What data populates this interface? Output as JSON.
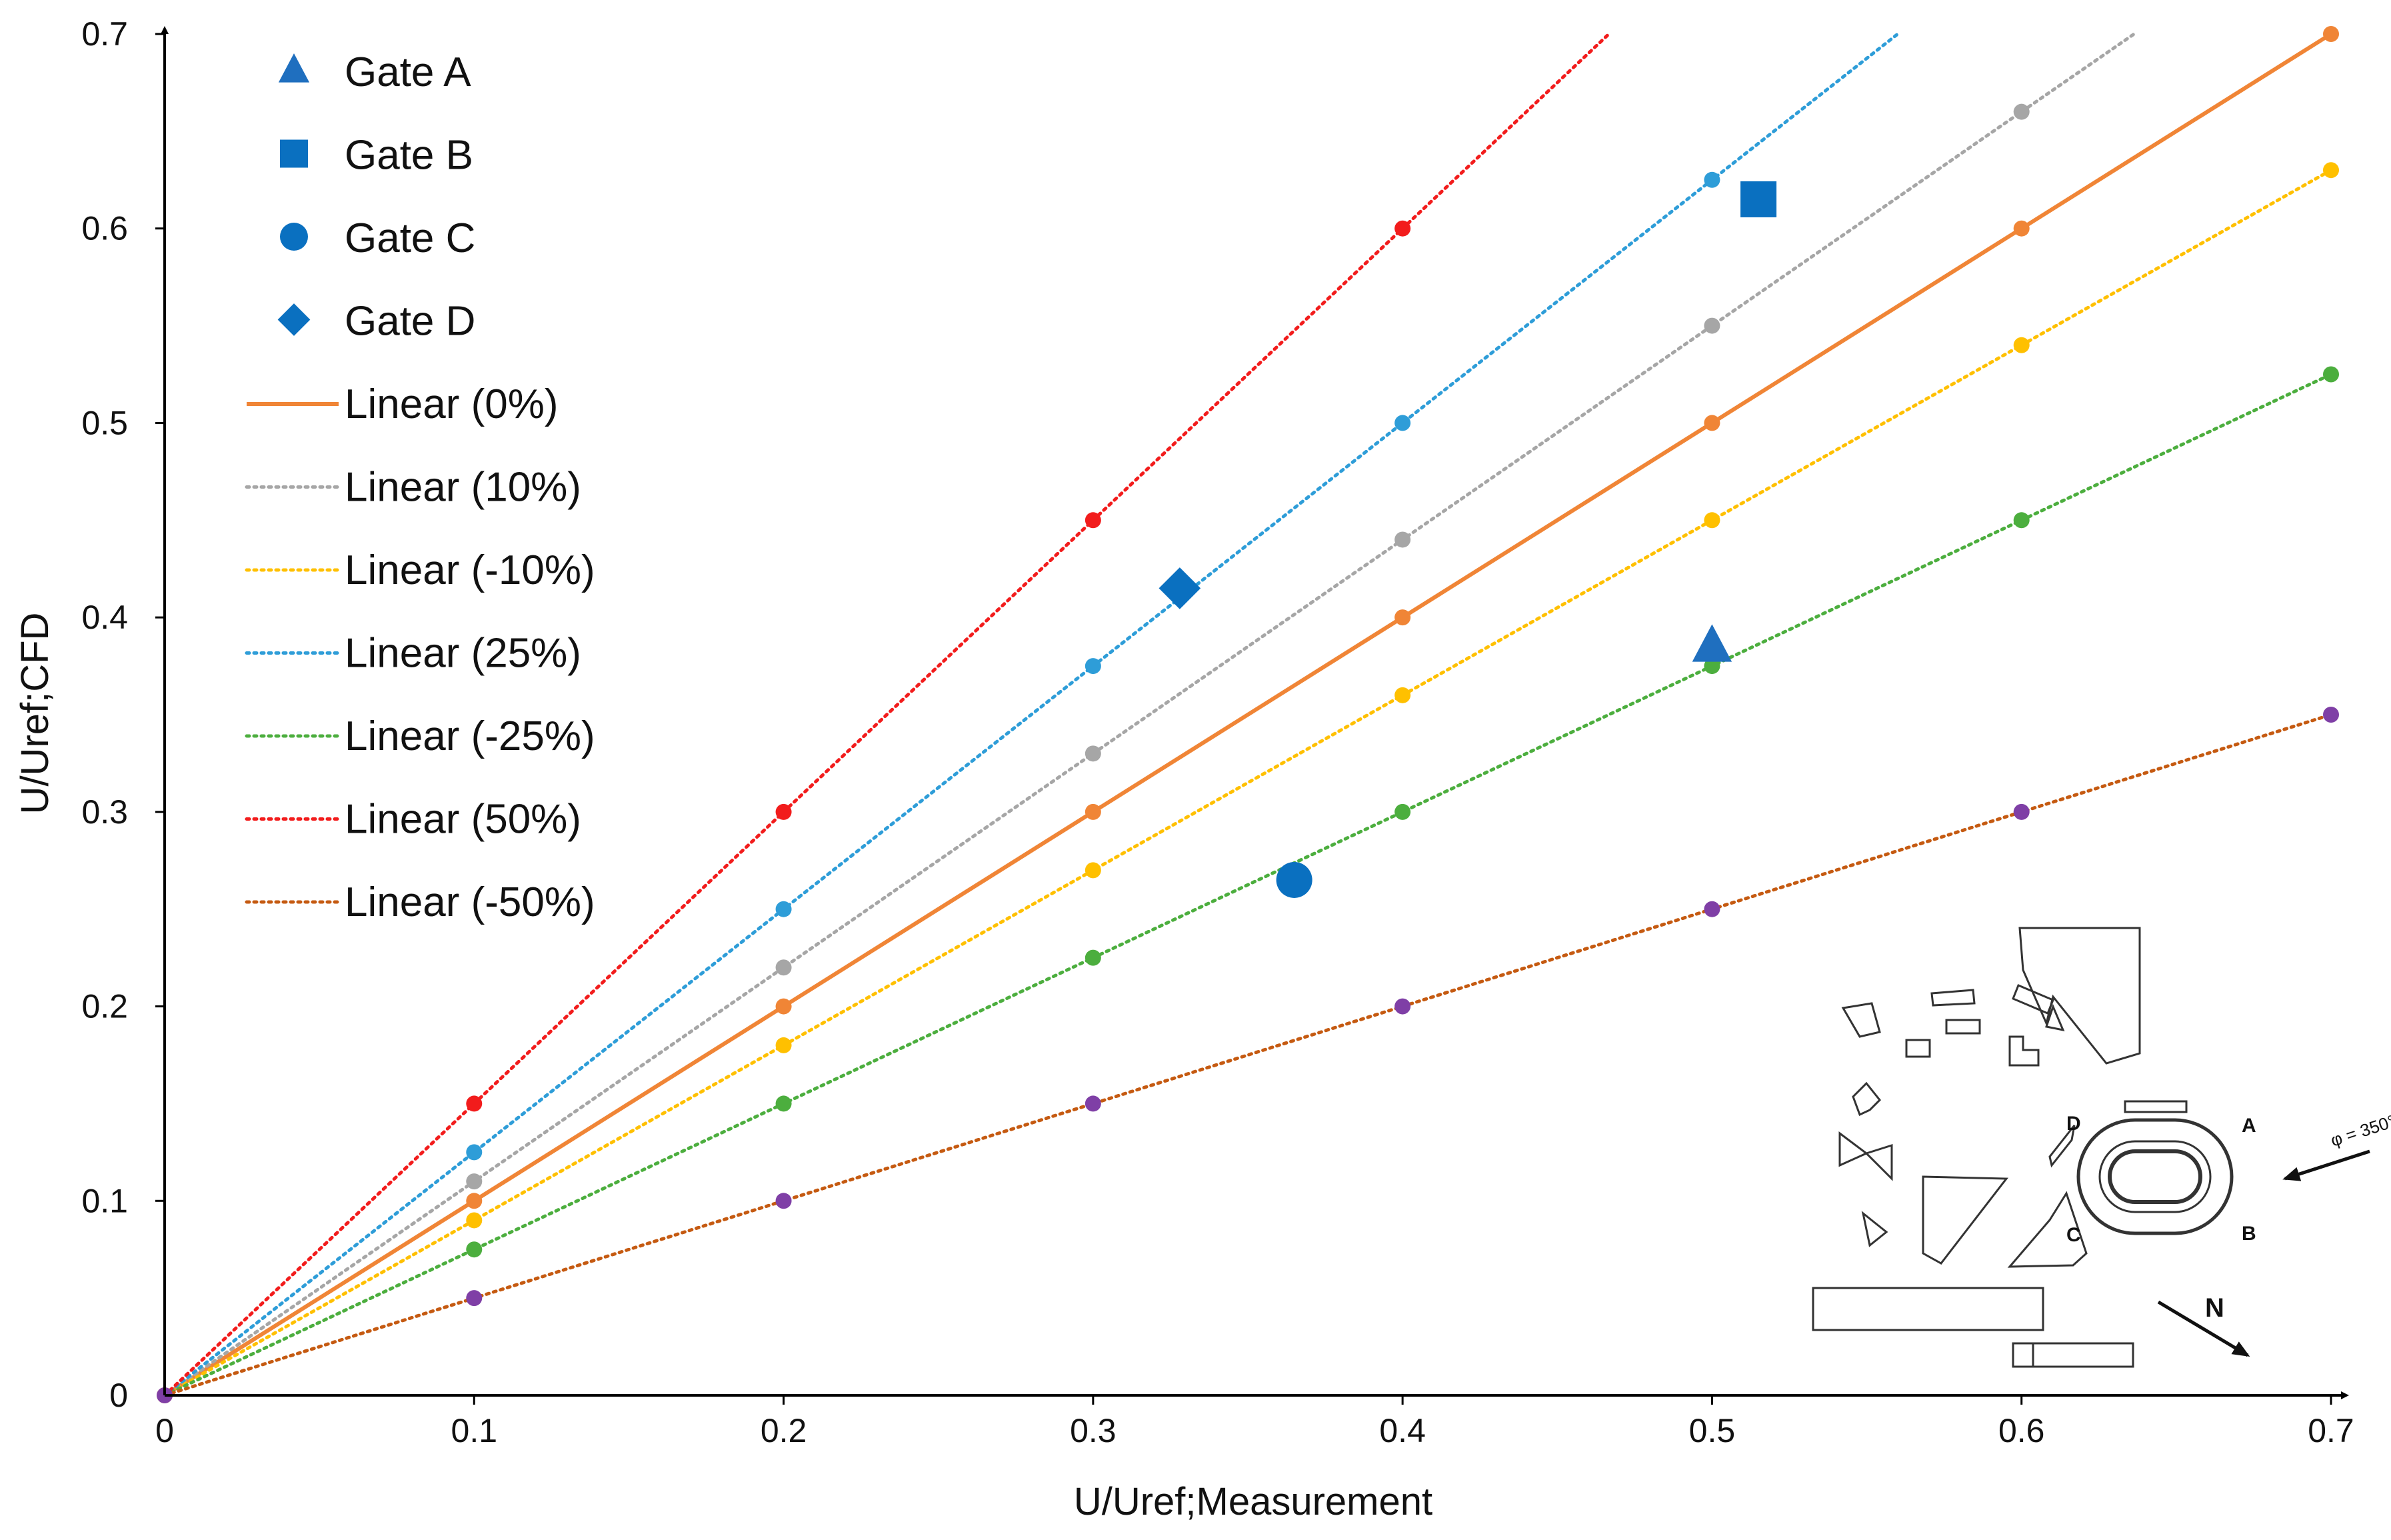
{
  "chart_data": {
    "type": "scatter",
    "title": "",
    "xlabel": "U/Uref;Measurement",
    "ylabel": "U/Uref;CFD",
    "xlim": [
      0,
      0.7
    ],
    "ylim": [
      0,
      0.7
    ],
    "xticks": [
      "0",
      "0.1",
      "0.2",
      "0.3",
      "0.4",
      "0.5",
      "0.6",
      "0.7"
    ],
    "yticks": [
      "0",
      "0.1",
      "0.2",
      "0.3",
      "0.4",
      "0.5",
      "0.6",
      "0.7"
    ],
    "grid": false,
    "legend_position": "top-left",
    "gates": [
      {
        "name": "Gate A",
        "marker": "triangle",
        "color": "#1F6FBF",
        "x": 0.5,
        "y": 0.385
      },
      {
        "name": "Gate B",
        "marker": "square",
        "color": "#0A70C0",
        "x": 0.515,
        "y": 0.615
      },
      {
        "name": "Gate C",
        "marker": "circle",
        "color": "#0A70C0",
        "x": 0.365,
        "y": 0.265
      },
      {
        "name": "Gate D",
        "marker": "diamond",
        "color": "#0A70C0",
        "x": 0.328,
        "y": 0.415
      }
    ],
    "series": [
      {
        "name": "Linear (0%)",
        "slope": 1.0,
        "style": "solid",
        "line_color": "#F08536",
        "point_color": "#F08536",
        "x": [
          0,
          0.1,
          0.2,
          0.3,
          0.4,
          0.5,
          0.6,
          0.7
        ],
        "y": [
          0,
          0.1,
          0.2,
          0.3,
          0.4,
          0.5,
          0.6,
          0.7
        ]
      },
      {
        "name": "Linear (10%)",
        "slope": 1.1,
        "style": "dotted",
        "line_color": "#A6A6A6",
        "point_color": "#A6A6A6",
        "x": [
          0.1,
          0.2,
          0.3,
          0.4,
          0.5,
          0.6
        ],
        "y": [
          0.11,
          0.22,
          0.33,
          0.44,
          0.55,
          0.66
        ]
      },
      {
        "name": "Linear (-10%)",
        "slope": 0.9,
        "style": "dotted",
        "line_color": "#FFC000",
        "point_color": "#FFC000",
        "x": [
          0.1,
          0.2,
          0.3,
          0.4,
          0.5,
          0.6,
          0.7
        ],
        "y": [
          0.09,
          0.18,
          0.27,
          0.36,
          0.45,
          0.54,
          0.63
        ]
      },
      {
        "name": "Linear (25%)",
        "slope": 1.25,
        "style": "dotted",
        "line_color": "#2E9DD8",
        "point_color": "#2E9DD8",
        "x": [
          0.1,
          0.2,
          0.3,
          0.4,
          0.5
        ],
        "y": [
          0.125,
          0.25,
          0.375,
          0.5,
          0.625
        ]
      },
      {
        "name": "Linear (-25%)",
        "slope": 0.75,
        "style": "dotted",
        "line_color": "#4CAE3E",
        "point_color": "#4CAE3E",
        "x": [
          0.1,
          0.2,
          0.3,
          0.4,
          0.5,
          0.6,
          0.7
        ],
        "y": [
          0.075,
          0.15,
          0.225,
          0.3,
          0.375,
          0.45,
          0.525
        ]
      },
      {
        "name": "Linear (50%)",
        "slope": 1.5,
        "style": "dotted",
        "line_color": "#F21C1C",
        "point_color": "#F21C1C",
        "x": [
          0.1,
          0.2,
          0.3,
          0.4
        ],
        "y": [
          0.15,
          0.3,
          0.45,
          0.6
        ]
      },
      {
        "name": "Linear (-50%)",
        "slope": 0.5,
        "style": "dotted",
        "line_color": "#C55A11",
        "point_color": "#7F3FA6",
        "x": [
          0,
          0.1,
          0.2,
          0.3,
          0.4,
          0.5,
          0.6,
          0.7
        ],
        "y": [
          0,
          0.05,
          0.1,
          0.15,
          0.2,
          0.25,
          0.3,
          0.35
        ]
      }
    ]
  },
  "site_plan": {
    "labels": [
      "A",
      "B",
      "C",
      "D"
    ],
    "wind_direction": "φ = 350°",
    "north_label": "N"
  }
}
